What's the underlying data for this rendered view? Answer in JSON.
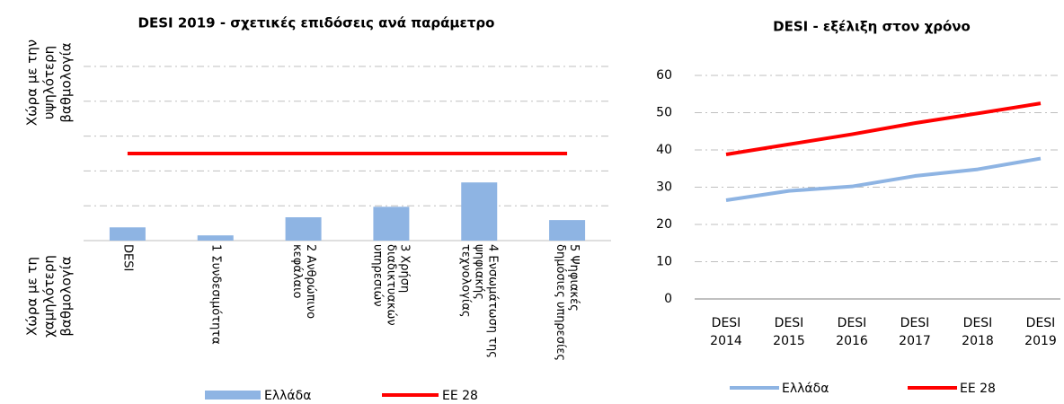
{
  "chart_data": [
    {
      "type": "bar",
      "title": "DESI 2019 - σχετικές επιδόσεις ανά παράμετρο",
      "y_label_top": "Χώρα με την υψηλότερη βαθμολογία",
      "y_label_bottom": "Χώρα με τη χαμηλότερη βαθμολογία",
      "categories": [
        "DESI",
        "1 Συνδεσιμότητα",
        "2 Ανθρώπινο κεφάλαιο",
        "3 Χρήση διαδικτυακών υπηρεσιών",
        "4 Ενσωμάτωση της ψηφιακής τεχνολογίας",
        "5 Ψηφιακές δημόσιες υπηρεσίες"
      ],
      "series": [
        {
          "name": "Ελλάδα",
          "color": "#8eb4e3",
          "kind": "bar",
          "values": [
            0.38,
            0.15,
            0.67,
            0.97,
            1.67,
            0.59
          ]
        },
        {
          "name": "ΕΕ 28",
          "color": "#ff0000",
          "kind": "line",
          "values": [
            2.5,
            2.5,
            2.5,
            2.5,
            2.5,
            2.5
          ]
        }
      ],
      "ylim": [
        0,
        5
      ],
      "yticks": [
        0,
        1,
        2,
        3,
        4,
        5
      ],
      "show_tick_labels": false,
      "grid": true
    },
    {
      "type": "line",
      "title": "DESI - εξέλιξη στον χρόνο",
      "categories": [
        "DESI 2014",
        "DESI 2015",
        "DESI 2016",
        "DESI 2017",
        "DESI 2018",
        "DESI 2019"
      ],
      "series": [
        {
          "name": "Ελλάδα",
          "color": "#8eb4e3",
          "values": [
            26.5,
            29,
            30.2,
            33,
            34.8,
            37.7
          ]
        },
        {
          "name": "ΕΕ 28",
          "color": "#ff0000",
          "values": [
            38.8,
            41.5,
            44.2,
            47.2,
            49.8,
            52.5
          ]
        }
      ],
      "ylim": [
        0,
        60
      ],
      "yticks": [
        0,
        10,
        20,
        30,
        40,
        50,
        60
      ],
      "show_tick_labels": true,
      "grid": true
    }
  ]
}
